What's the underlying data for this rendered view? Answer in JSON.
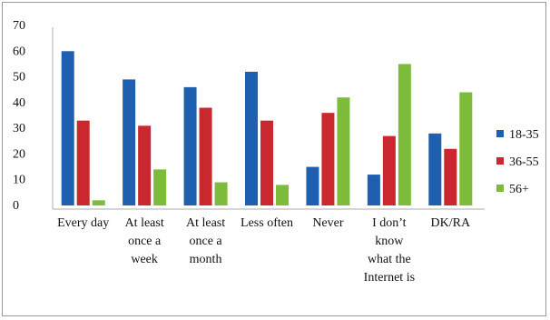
{
  "chart_data": {
    "type": "bar",
    "title": "",
    "xlabel": "",
    "ylabel": "",
    "ylim": [
      0,
      70
    ],
    "yticks": [
      0,
      10,
      20,
      30,
      40,
      50,
      60,
      70
    ],
    "grid": false,
    "legend_position": "right",
    "categories": [
      [
        "Every day"
      ],
      [
        "At least",
        "once a",
        "week"
      ],
      [
        "At least",
        "once a",
        "month"
      ],
      [
        "Less often"
      ],
      [
        "Never"
      ],
      [
        "I don’t",
        "know",
        "what the",
        "Internet is"
      ],
      [
        "DK/RA"
      ]
    ],
    "series": [
      {
        "name": "18-35",
        "color": "#1f5fb0",
        "values": [
          60,
          49,
          46,
          52,
          15,
          12,
          28
        ]
      },
      {
        "name": "36-55",
        "color": "#c8282e",
        "values": [
          33,
          31,
          38,
          33,
          36,
          27,
          22
        ]
      },
      {
        "name": "56+",
        "color": "#7dbb3a",
        "values": [
          2,
          14,
          9,
          8,
          42,
          55,
          44
        ]
      }
    ]
  }
}
